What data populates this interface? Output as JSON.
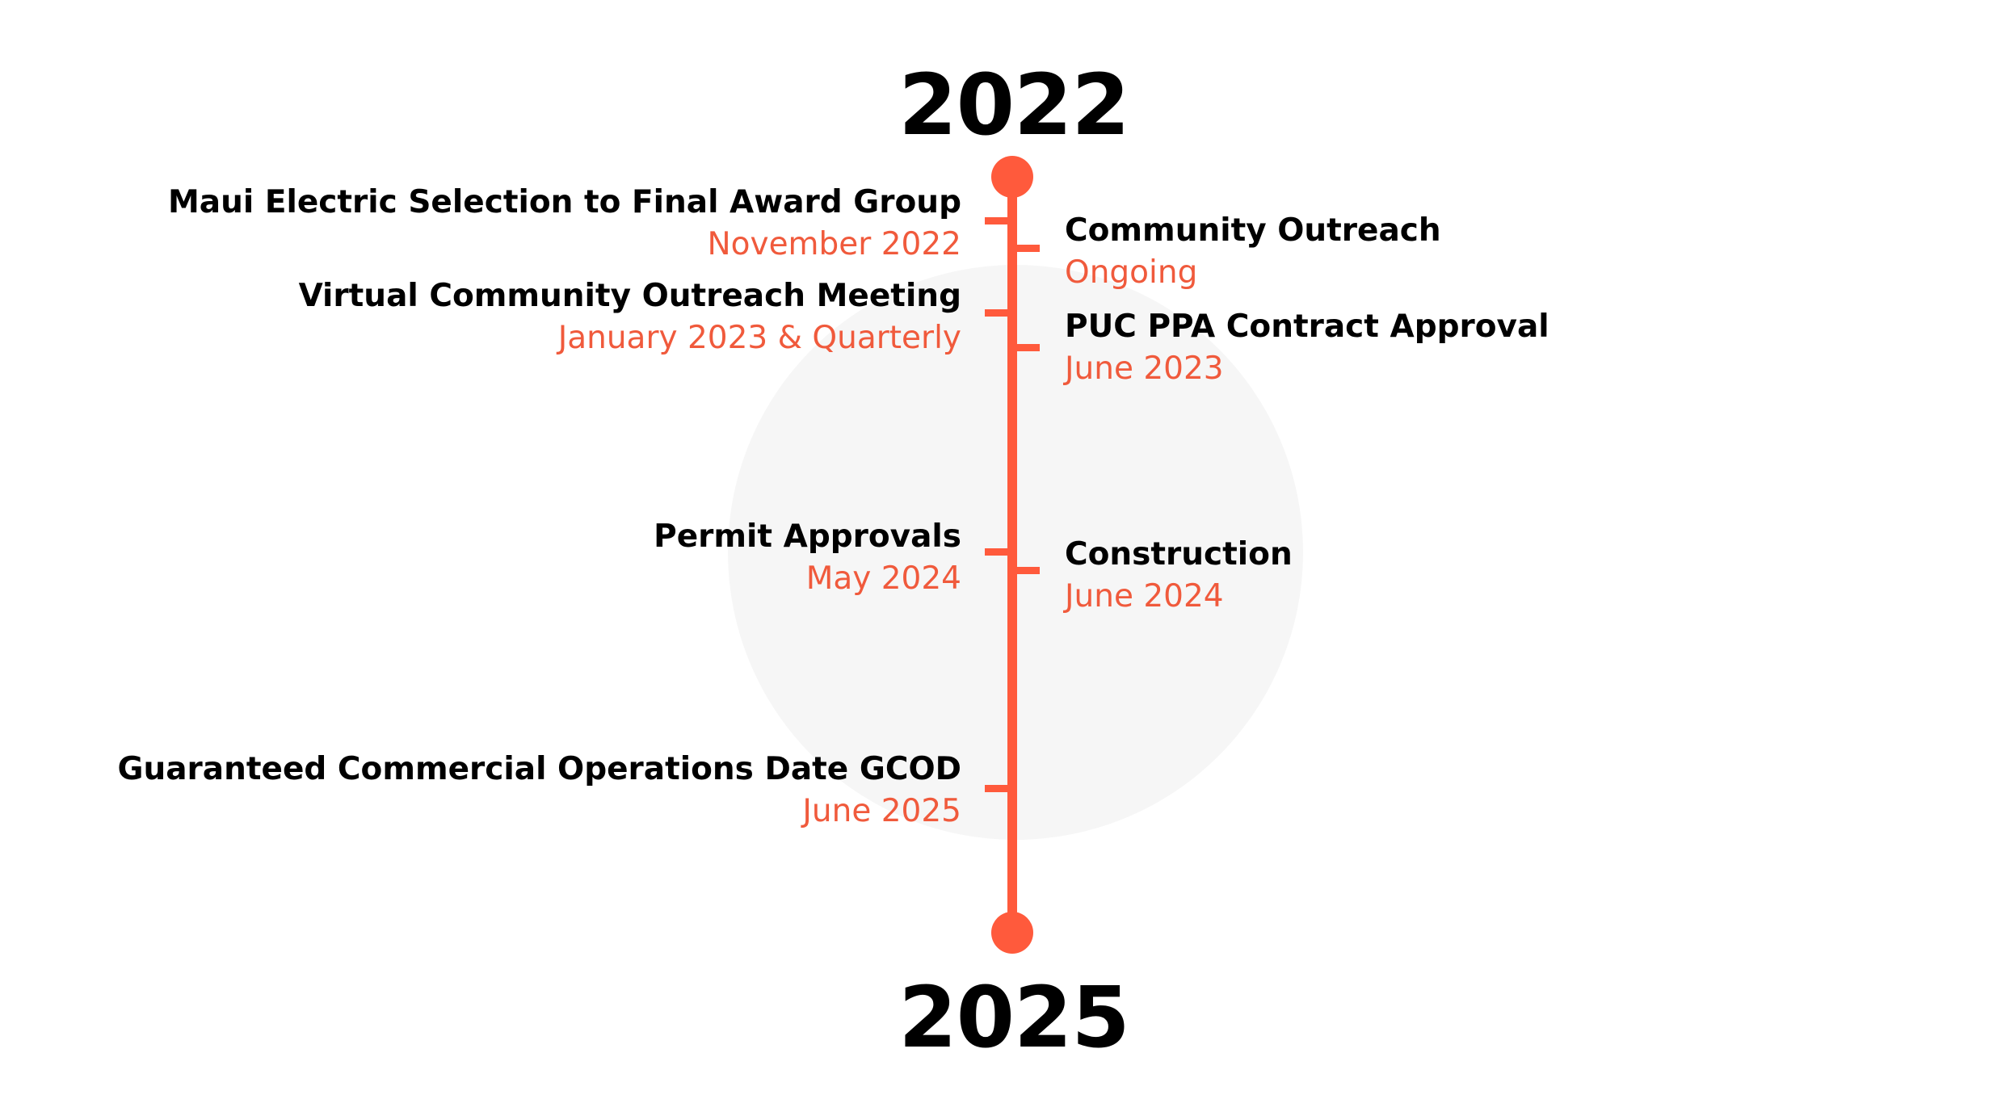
{
  "timeline": {
    "start_year": "2022",
    "end_year": "2025",
    "accent_color": "#ff5a3c",
    "events": [
      {
        "side": "left",
        "title": "Maui Electric Selection to Final Award Group",
        "date": "November 2022"
      },
      {
        "side": "right",
        "title": "Community Outreach",
        "date": "Ongoing"
      },
      {
        "side": "left",
        "title": "Virtual Community Outreach Meeting",
        "date": "January 2023 & Quarterly"
      },
      {
        "side": "right",
        "title": "PUC PPA Contract Approval",
        "date": "June 2023"
      },
      {
        "side": "left",
        "title": "Permit Approvals",
        "date": "May 2024"
      },
      {
        "side": "right",
        "title": "Construction",
        "date": "June 2024"
      },
      {
        "side": "left",
        "title": "Guaranteed Commercial Operations Date GCOD",
        "date": "June 2025"
      }
    ]
  }
}
